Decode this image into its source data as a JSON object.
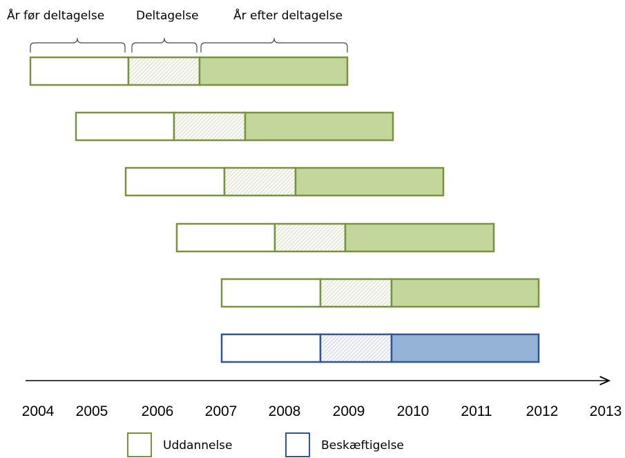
{
  "top_labels": [
    "År før deltagelse",
    "Deltagelse",
    "År efter deltagelse"
  ],
  "years": [
    "2004",
    "2005",
    "2006",
    "2007",
    "2008",
    "2009",
    "2010",
    "2011",
    "2012",
    "2013"
  ],
  "legend": [
    "Uddannelse",
    "Beskæftigelse"
  ]
}
